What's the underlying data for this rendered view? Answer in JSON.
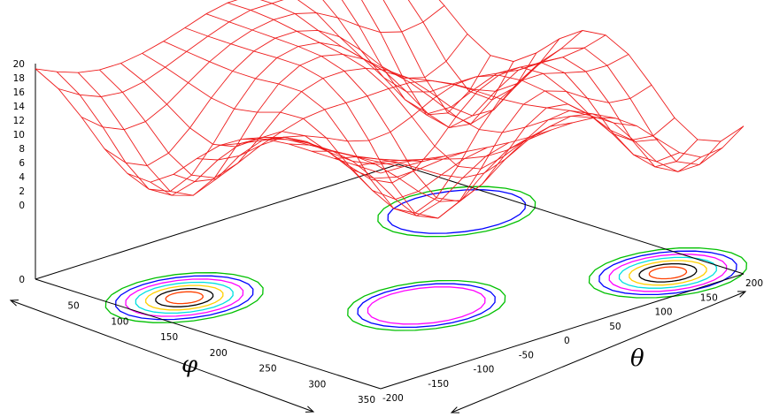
{
  "chart_data": {
    "type": "surface-3d",
    "title": "",
    "x_axis": {
      "label": "φ",
      "range": [
        0,
        350
      ],
      "ticks": [
        "50",
        "100",
        "150",
        "200",
        "250",
        "300",
        "350"
      ]
    },
    "y_axis": {
      "label": "θ",
      "range": [
        -200,
        200
      ],
      "ticks": [
        "-200",
        "-150",
        "-100",
        "-50",
        "0",
        "50",
        "100",
        "150",
        "200"
      ]
    },
    "z_axis": {
      "range": [
        0,
        20
      ],
      "ticks": [
        "0",
        "2",
        "4",
        "6",
        "8",
        "10",
        "12",
        "14",
        "16",
        "18",
        "20"
      ],
      "base_tick": "0"
    },
    "surface": {
      "description_free": true,
      "grid_phi": 15,
      "grid_theta": 17,
      "color": "#ee1c1c",
      "peak_value": 20,
      "valleys": [
        [
          105,
          -150
        ],
        [
          240,
          -30
        ],
        [
          105,
          150
        ],
        [
          310,
          160
        ]
      ]
    },
    "contours": {
      "colors": [
        "#00c000",
        "#0000ff",
        "#ff00ff",
        "#00e0e0",
        "#ffd000",
        "#000000",
        "#ff4000"
      ],
      "regions": [
        {
          "center": [
            105,
            -150
          ],
          "levels": 7
        },
        {
          "center": [
            240,
            -30
          ],
          "levels": 3
        },
        {
          "center": [
            105,
            150
          ],
          "levels": 2
        },
        {
          "center": [
            310,
            160
          ],
          "levels": 7
        }
      ]
    },
    "grid": false,
    "legend": "none"
  }
}
